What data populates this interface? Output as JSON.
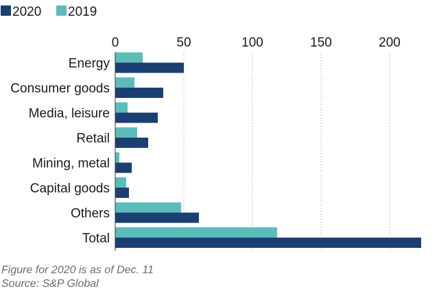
{
  "chart_data": {
    "type": "bar",
    "orientation": "horizontal",
    "categories": [
      "Energy",
      "Consumer goods",
      "Media, leisure",
      "Retail",
      "Mining, metal",
      "Capital goods",
      "Others",
      "Total"
    ],
    "series": [
      {
        "name": "2020",
        "color": "#1b3f72",
        "values": [
          50,
          35,
          31,
          24,
          12,
          10,
          61,
          223
        ]
      },
      {
        "name": "2019",
        "color": "#5cbcba",
        "values": [
          20,
          14,
          9,
          16,
          3,
          8,
          48,
          118
        ]
      }
    ],
    "xticks": [
      0,
      50,
      100,
      150,
      200
    ],
    "xlim": [
      0,
      225
    ],
    "grid": "vertical dotted",
    "legend_position": "top-left",
    "notes": [
      "Figure for 2020 is as of Dec. 11",
      "Source: S&P Global"
    ]
  }
}
